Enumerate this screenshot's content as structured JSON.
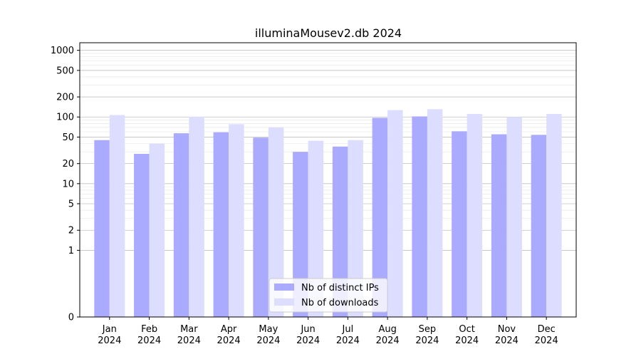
{
  "chart_data": {
    "type": "bar",
    "title": "illuminaMousev2.db 2024",
    "xlabel": "",
    "ylabel": "",
    "yscale": "symlog",
    "ylim": [
      0,
      1300
    ],
    "yticks": [
      0,
      1,
      2,
      5,
      10,
      20,
      50,
      100,
      200,
      500,
      1000
    ],
    "categories": [
      [
        "Jan",
        "2024"
      ],
      [
        "Feb",
        "2024"
      ],
      [
        "Mar",
        "2024"
      ],
      [
        "Apr",
        "2024"
      ],
      [
        "May",
        "2024"
      ],
      [
        "Jun",
        "2024"
      ],
      [
        "Jul",
        "2024"
      ],
      [
        "Aug",
        "2024"
      ],
      [
        "Sep",
        "2024"
      ],
      [
        "Oct",
        "2024"
      ],
      [
        "Nov",
        "2024"
      ],
      [
        "Dec",
        "2024"
      ]
    ],
    "series": [
      {
        "name": "Nb of distinct IPs",
        "color": "#aaaaff",
        "values": [
          45,
          28,
          57,
          59,
          49,
          30,
          36,
          97,
          102,
          61,
          55,
          54
        ]
      },
      {
        "name": "Nb of downloads",
        "color": "#ddddff",
        "values": [
          107,
          40,
          101,
          78,
          70,
          44,
          45,
          127,
          131,
          111,
          100,
          111
        ]
      }
    ],
    "legend_position": "lower-center",
    "grid": true
  }
}
